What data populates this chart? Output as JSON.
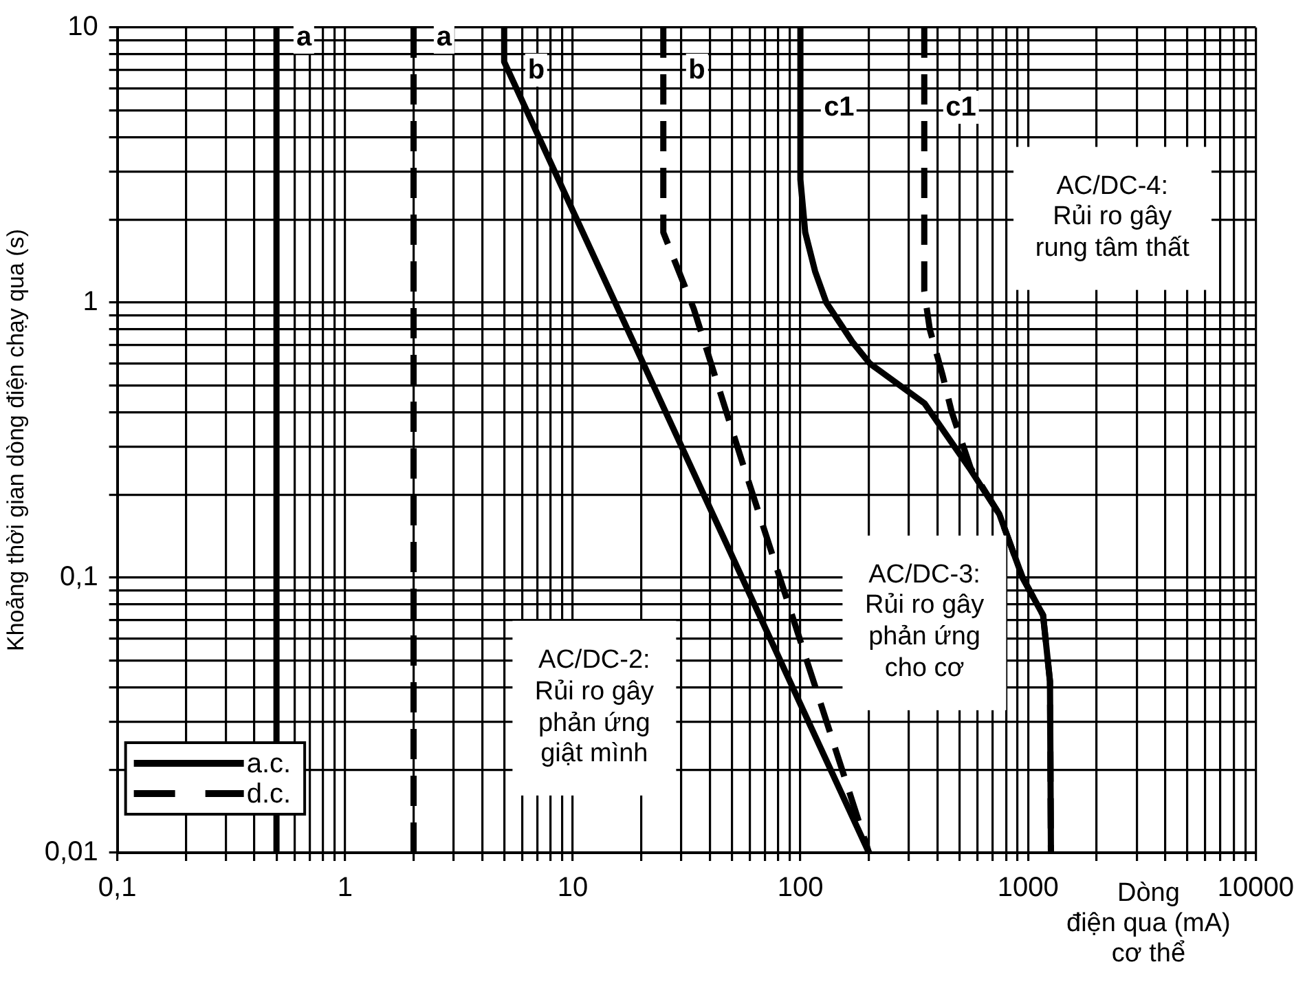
{
  "chart_data": {
    "type": "line",
    "xlabel": "Dòng\nđiện qua (mA)\ncơ thể",
    "ylabel": "Khoảng thời gian dòng điện chạy qua (s)",
    "series": [
      {
        "name": "a.c.",
        "color": "#000000",
        "line_style": "solid",
        "x": [
          0.5,
          0.5,
          null,
          5,
          5,
          200,
          null,
          100,
          100,
          105,
          116,
          130,
          169,
          202,
          351,
          553,
          748,
          946,
          1164,
          1248,
          1260
        ],
        "values": [
          0.01,
          10,
          null,
          10,
          7.5,
          0.01,
          null,
          10,
          2.8,
          1.8,
          1.3,
          1,
          0.72,
          0.6,
          0.43,
          0.25,
          0.17,
          0.1,
          0.073,
          0.042,
          0.01
        ]
      },
      {
        "name": "d.c.",
        "color": "#000000",
        "line_style": "dashed",
        "x": [
          2,
          2,
          null,
          25,
          25,
          34,
          55,
          120,
          200,
          null,
          350,
          350,
          370,
          420,
          462,
          560,
          748,
          946,
          1164,
          1248,
          1260
        ],
        "values": [
          0.01,
          10,
          null,
          10,
          1.8,
          0.95,
          0.27,
          0.037,
          0.01,
          null,
          10,
          1.1,
          0.8,
          0.55,
          0.4,
          0.25,
          0.17,
          0.1,
          0.073,
          0.042,
          0.01
        ]
      }
    ],
    "log": "xy",
    "xlim": [
      0.1,
      10000
    ],
    "ylim": [
      0.01,
      10
    ],
    "xticks": [
      {
        "value": 0.1,
        "label": "0,1"
      },
      {
        "value": 0.2,
        "label": null
      },
      {
        "value": 0.3,
        "label": null
      },
      {
        "value": 0.4,
        "label": null
      },
      {
        "value": 0.5,
        "label": null
      },
      {
        "value": 0.6,
        "label": null
      },
      {
        "value": 0.7,
        "label": null
      },
      {
        "value": 0.8,
        "label": null
      },
      {
        "value": 0.9,
        "label": null
      },
      1,
      {
        "value": 2,
        "label": null
      },
      {
        "value": 3,
        "label": null
      },
      {
        "value": 4,
        "label": null
      },
      {
        "value": 5,
        "label": null
      },
      {
        "value": 6,
        "label": null
      },
      {
        "value": 7,
        "label": null
      },
      {
        "value": 8,
        "label": null
      },
      {
        "value": 9,
        "label": null
      },
      10,
      {
        "value": 20,
        "label": null
      },
      {
        "value": 30,
        "label": null
      },
      {
        "value": 40,
        "label": null
      },
      {
        "value": 50,
        "label": null
      },
      {
        "value": 60,
        "label": null
      },
      {
        "value": 70,
        "label": null
      },
      {
        "value": 80,
        "label": null
      },
      {
        "value": 90,
        "label": null
      },
      100,
      {
        "value": 200,
        "label": null
      },
      {
        "value": 300,
        "label": null
      },
      {
        "value": 400,
        "label": null
      },
      {
        "value": 500,
        "label": null
      },
      {
        "value": 600,
        "label": null
      },
      {
        "value": 700,
        "label": null
      },
      {
        "value": 800,
        "label": null
      },
      {
        "value": 900,
        "label": null
      },
      1000,
      {
        "value": 2000,
        "label": null
      },
      {
        "value": 3000,
        "label": null
      },
      {
        "value": 4000,
        "label": null
      },
      {
        "value": 5000,
        "label": null
      },
      {
        "value": 6000,
        "label": null
      },
      {
        "value": 7000,
        "label": null
      },
      {
        "value": 8000,
        "label": null
      },
      {
        "value": 9000,
        "label": null
      },
      10000
    ],
    "yticks": [
      {
        "value": 0.01,
        "label": "0,01"
      },
      {
        "value": 0.02,
        "label": null
      },
      {
        "value": 0.03,
        "label": null
      },
      {
        "value": 0.04,
        "label": null
      },
      {
        "value": 0.05,
        "label": null
      },
      {
        "value": 0.06,
        "label": null
      },
      {
        "value": 0.07,
        "label": null
      },
      {
        "value": 0.08,
        "label": null
      },
      {
        "value": 0.09,
        "label": null
      },
      {
        "value": 0.1,
        "label": "0,1"
      },
      {
        "value": 0.2,
        "label": null
      },
      {
        "value": 0.3,
        "label": null
      },
      {
        "value": 0.4,
        "label": null
      },
      {
        "value": 0.5,
        "label": null
      },
      {
        "value": 0.6,
        "label": null
      },
      {
        "value": 0.7,
        "label": null
      },
      {
        "value": 0.8,
        "label": null
      },
      {
        "value": 0.9,
        "label": null
      },
      1,
      {
        "value": 2,
        "label": null
      },
      {
        "value": 3,
        "label": null
      },
      {
        "value": 4,
        "label": null
      },
      {
        "value": 5,
        "label": null
      },
      {
        "value": 6,
        "label": null
      },
      {
        "value": 7,
        "label": null
      },
      {
        "value": 8,
        "label": null
      },
      {
        "value": 9,
        "label": null
      },
      10
    ],
    "grid": true,
    "legend": "bottom left",
    "annotations": [
      "a",
      "a",
      "b",
      "b",
      "c1",
      "c1",
      "AC/DC-2:\nRủi ro gây\nphản ứng\ngiật mình",
      "AC/DC-3:\nRủi ro gây\nphản ứng\ncho cơ",
      "AC/DC-4:\nRủi ro gây\nrung tâm thất"
    ]
  }
}
